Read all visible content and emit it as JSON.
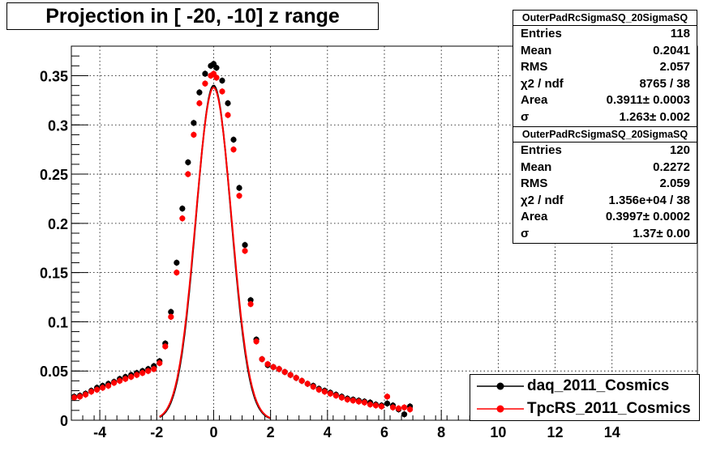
{
  "title": "Projection in [ -20, -10] z range",
  "stats": [
    {
      "name": "OuterPadRcSigmaSQ_20SigmaSQ",
      "rows": [
        {
          "key": "Entries",
          "value": "118"
        },
        {
          "key": "Mean",
          "value": "0.2041"
        },
        {
          "key": "RMS",
          "value": "2.057"
        },
        {
          "key": "χ2 / ndf",
          "value": "8765 / 38"
        },
        {
          "key": "Area",
          "value": "0.3911± 0.0003"
        },
        {
          "key": "σ",
          "value": "1.263± 0.002"
        }
      ]
    },
    {
      "name": "OuterPadRcSigmaSQ_20SigmaSQ",
      "rows": [
        {
          "key": "Entries",
          "value": "120"
        },
        {
          "key": "Mean",
          "value": "0.2272"
        },
        {
          "key": "RMS",
          "value": "2.059"
        },
        {
          "key": "χ2 / ndf",
          "value": "1.356e+04 / 38"
        },
        {
          "key": "Area",
          "value": "0.3997± 0.0002"
        },
        {
          "key": "σ",
          "value": "1.37± 0.00"
        }
      ]
    }
  ],
  "legend": [
    {
      "label": "daq_2011_Cosmics",
      "color": "#000000"
    },
    {
      "label": "TpcRS_2011_Cosmics",
      "color": "#ff0000"
    }
  ],
  "chart_data": {
    "type": "scatter",
    "title": "Projection in [ -20, -10] z range",
    "xlim": [
      -5,
      17
    ],
    "ylim": [
      0,
      0.38
    ],
    "xticks": [
      -4,
      -2,
      0,
      2,
      4,
      6,
      8,
      10,
      12,
      14
    ],
    "yticks": [
      0.05,
      0.1,
      0.15,
      0.2,
      0.25,
      0.3,
      0.35
    ],
    "ytick_labels": [
      "0.05",
      "0.1",
      "0.15",
      "0.2",
      "0.25",
      "0.3",
      "0.35"
    ],
    "ylabel_zero": "0",
    "grid": true,
    "legend_position": "bottom-right",
    "series": [
      {
        "name": "daq_2011_Cosmics",
        "color": "#000000",
        "x": [
          -4.9,
          -4.7,
          -4.5,
          -4.3,
          -4.1,
          -3.9,
          -3.7,
          -3.5,
          -3.3,
          -3.1,
          -2.9,
          -2.7,
          -2.5,
          -2.3,
          -2.1,
          -1.9,
          -1.7,
          -1.5,
          -1.3,
          -1.1,
          -0.9,
          -0.7,
          -0.5,
          -0.3,
          -0.1,
          0.0,
          0.1,
          0.3,
          0.5,
          0.7,
          0.9,
          1.1,
          1.3,
          1.5,
          1.7,
          1.9,
          2.1,
          2.3,
          2.5,
          2.7,
          2.9,
          3.1,
          3.3,
          3.5,
          3.7,
          3.9,
          4.1,
          4.3,
          4.5,
          4.7,
          4.9,
          5.1,
          5.3,
          5.5,
          5.7,
          5.9,
          6.1,
          6.3,
          6.5,
          6.7,
          6.9
        ],
        "y": [
          0.024,
          0.025,
          0.027,
          0.03,
          0.033,
          0.035,
          0.037,
          0.039,
          0.042,
          0.044,
          0.046,
          0.048,
          0.05,
          0.052,
          0.055,
          0.06,
          0.078,
          0.11,
          0.16,
          0.215,
          0.262,
          0.302,
          0.333,
          0.352,
          0.36,
          0.362,
          0.358,
          0.345,
          0.322,
          0.285,
          0.236,
          0.178,
          0.122,
          0.082,
          0.062,
          0.056,
          0.054,
          0.052,
          0.049,
          0.046,
          0.043,
          0.04,
          0.037,
          0.035,
          0.032,
          0.03,
          0.028,
          0.026,
          0.024,
          0.022,
          0.021,
          0.02,
          0.019,
          0.018,
          0.016,
          0.015,
          0.017,
          0.015,
          0.011,
          0.006,
          0.014
        ]
      },
      {
        "name": "TpcRS_2011_Cosmics",
        "color": "#ff0000",
        "x": [
          -4.9,
          -4.7,
          -4.5,
          -4.3,
          -4.1,
          -3.9,
          -3.7,
          -3.5,
          -3.3,
          -3.1,
          -2.9,
          -2.7,
          -2.5,
          -2.3,
          -2.1,
          -1.9,
          -1.7,
          -1.5,
          -1.3,
          -1.1,
          -0.9,
          -0.7,
          -0.5,
          -0.3,
          -0.1,
          0.0,
          0.1,
          0.3,
          0.5,
          0.7,
          0.9,
          1.1,
          1.3,
          1.5,
          1.7,
          1.9,
          2.1,
          2.3,
          2.5,
          2.7,
          2.9,
          3.1,
          3.3,
          3.5,
          3.7,
          3.9,
          4.1,
          4.3,
          4.5,
          4.7,
          4.9,
          5.1,
          5.3,
          5.5,
          5.7,
          5.9,
          6.1,
          6.3,
          6.5,
          6.7,
          6.9
        ],
        "y": [
          0.023,
          0.024,
          0.026,
          0.029,
          0.031,
          0.033,
          0.035,
          0.038,
          0.04,
          0.042,
          0.044,
          0.046,
          0.048,
          0.05,
          0.052,
          0.058,
          0.075,
          0.105,
          0.15,
          0.205,
          0.25,
          0.29,
          0.322,
          0.342,
          0.35,
          0.352,
          0.348,
          0.334,
          0.31,
          0.275,
          0.228,
          0.172,
          0.118,
          0.08,
          0.062,
          0.057,
          0.054,
          0.052,
          0.049,
          0.046,
          0.043,
          0.04,
          0.037,
          0.034,
          0.031,
          0.029,
          0.027,
          0.025,
          0.023,
          0.021,
          0.02,
          0.019,
          0.018,
          0.016,
          0.015,
          0.014,
          0.024,
          0.013,
          0.012,
          0.013,
          0.011
        ]
      }
    ],
    "fits": [
      {
        "series": "daq_2011_Cosmics",
        "color": "#000000",
        "amplitude": 0.34,
        "sigma": 0.62,
        "xmin": -1.9,
        "xmax": 2.0
      },
      {
        "series": "TpcRS_2011_Cosmics",
        "color": "#ff0000",
        "amplitude": 0.338,
        "sigma": 0.63,
        "xmin": -1.9,
        "xmax": 2.0
      }
    ]
  }
}
